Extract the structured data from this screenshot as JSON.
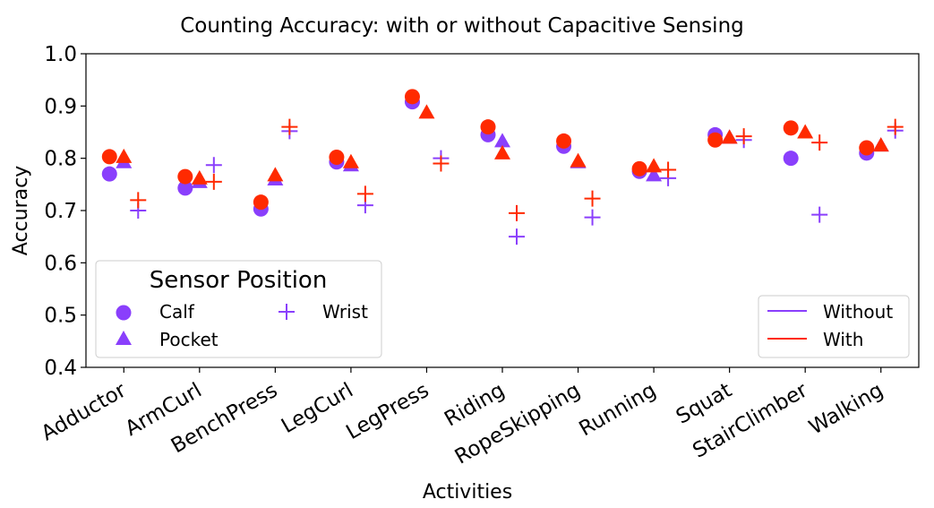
{
  "colors": {
    "without": "#8a3ffc",
    "with": "#ff2a00"
  },
  "chart_data": {
    "type": "scatter",
    "title": "Counting Accuracy: with or without Capacitive Sensing",
    "xlabel": "Activities",
    "ylabel": "Accuracy",
    "ylim": [
      0.4,
      1.0
    ],
    "yticks": [
      "0.4",
      "0.5",
      "0.6",
      "0.7",
      "0.8",
      "0.9",
      "1.0"
    ],
    "categories": [
      "Adductor",
      "ArmCurl",
      "BenchPress",
      "LegCurl",
      "LegPress",
      "Riding",
      "RopeSkipping",
      "Running",
      "Squat",
      "StairClimber",
      "Walking"
    ],
    "series": [
      {
        "name": "Calf - Without",
        "position": "Calf",
        "condition": "Without",
        "values": [
          0.77,
          0.743,
          0.703,
          0.793,
          0.908,
          0.845,
          0.823,
          0.775,
          0.845,
          0.8,
          0.81
        ]
      },
      {
        "name": "Calf - With",
        "position": "Calf",
        "condition": "With",
        "values": [
          0.803,
          0.765,
          0.716,
          0.802,
          0.918,
          0.86,
          0.833,
          0.78,
          0.835,
          0.858,
          0.82
        ]
      },
      {
        "name": "Pocket - Without",
        "position": "Pocket",
        "condition": "Without",
        "values": [
          0.793,
          0.755,
          0.76,
          0.787,
          null,
          0.833,
          0.793,
          0.768,
          0.84,
          null,
          0.825
        ]
      },
      {
        "name": "Pocket - With",
        "position": "Pocket",
        "condition": "With",
        "values": [
          0.803,
          0.762,
          0.768,
          0.793,
          0.888,
          0.81,
          0.795,
          0.785,
          0.84,
          0.85,
          0.825
        ]
      },
      {
        "name": "Wrist - Without",
        "position": "Wrist",
        "condition": "Without",
        "values": [
          0.7,
          0.787,
          0.852,
          0.71,
          0.8,
          0.65,
          0.687,
          0.762,
          0.835,
          0.692,
          0.853
        ]
      },
      {
        "name": "Wrist - With",
        "position": "Wrist",
        "condition": "With",
        "values": [
          0.72,
          0.755,
          0.86,
          0.732,
          0.79,
          0.695,
          0.723,
          0.778,
          0.842,
          0.83,
          0.86
        ]
      }
    ],
    "legend_position": {
      "title": "Sensor Position",
      "entries": [
        "Calf",
        "Pocket",
        "Wrist"
      ],
      "placement": "lower-left"
    },
    "legend_condition": {
      "entries": [
        "Without",
        "With"
      ],
      "placement": "lower-right"
    }
  }
}
